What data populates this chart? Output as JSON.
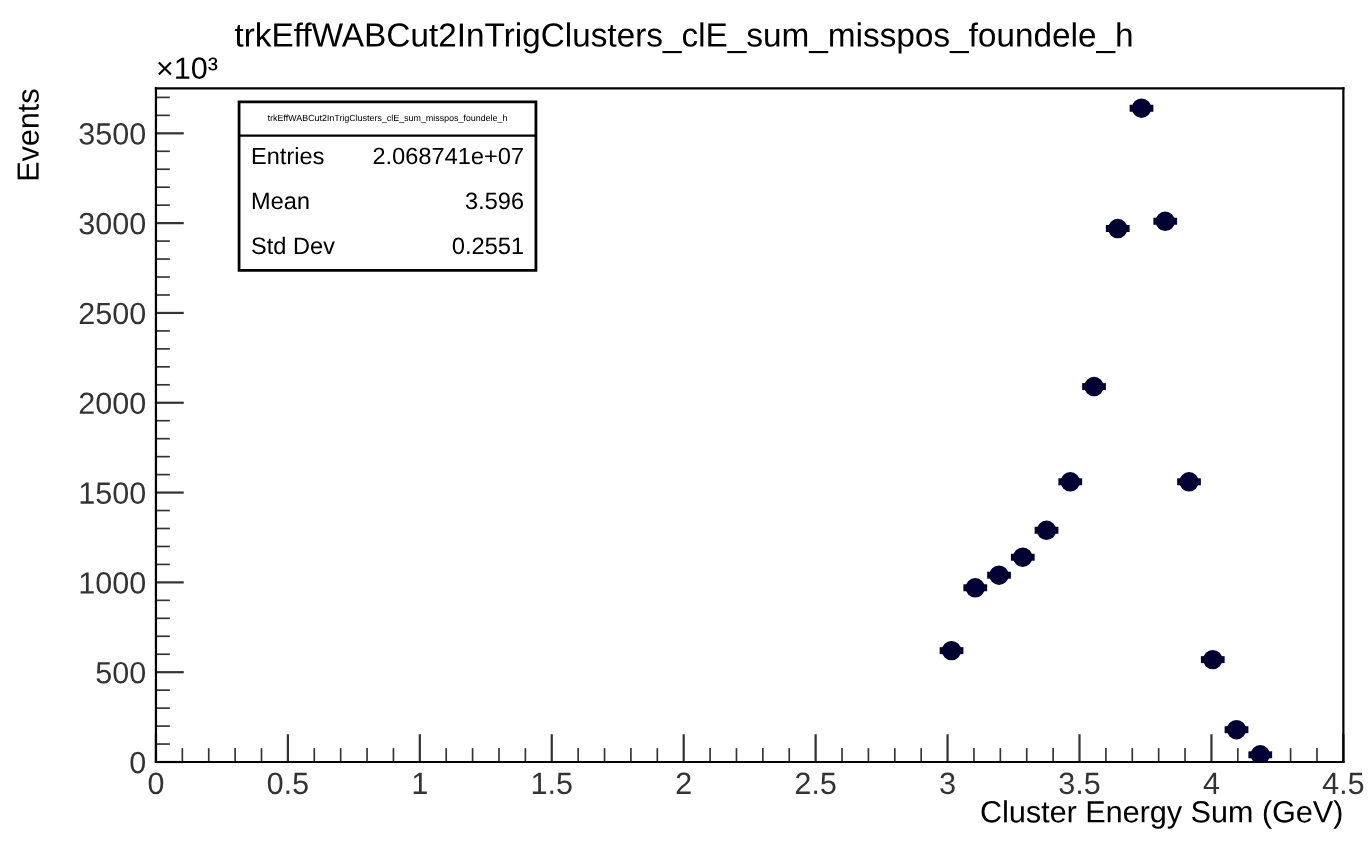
{
  "chart_data": {
    "type": "scatter",
    "title": "trkEffWABCut2InTrigClusters_clE_sum_misspos_foundele_h",
    "xlabel": "Cluster Energy Sum (GeV)",
    "ylabel": "Events",
    "x": [
      3.015,
      3.105,
      3.195,
      3.285,
      3.375,
      3.465,
      3.555,
      3.645,
      3.735,
      3.825,
      3.915,
      4.005,
      4.095,
      4.185
    ],
    "values": [
      620,
      970,
      1040,
      1140,
      1290,
      1560,
      2090,
      2970,
      3640,
      3010,
      1560,
      570,
      180,
      40
    ],
    "xerrors": [
      0.045,
      0.045,
      0.045,
      0.045,
      0.045,
      0.045,
      0.045,
      0.045,
      0.045,
      0.045,
      0.045,
      0.045,
      0.045,
      0.045
    ],
    "color": "#000033",
    "marker": "circle",
    "xlim": [
      0,
      4.5
    ],
    "xticks": [
      0,
      0.5,
      1,
      1.5,
      2,
      2.5,
      3,
      3.5,
      4,
      4.5
    ],
    "ylim": [
      0,
      3750
    ],
    "yticks": [
      0,
      500,
      1000,
      1500,
      2000,
      2500,
      3000,
      3500
    ],
    "grid": false,
    "legend": false,
    "annotations": [
      "×10³",
      "trkEffWABCut2InTrigClusters_clE_sum_misspos_foundele_h",
      "Entries",
      "2.068741e+07",
      "Mean",
      "3.596",
      "Std Dev",
      "0.2551"
    ]
  }
}
